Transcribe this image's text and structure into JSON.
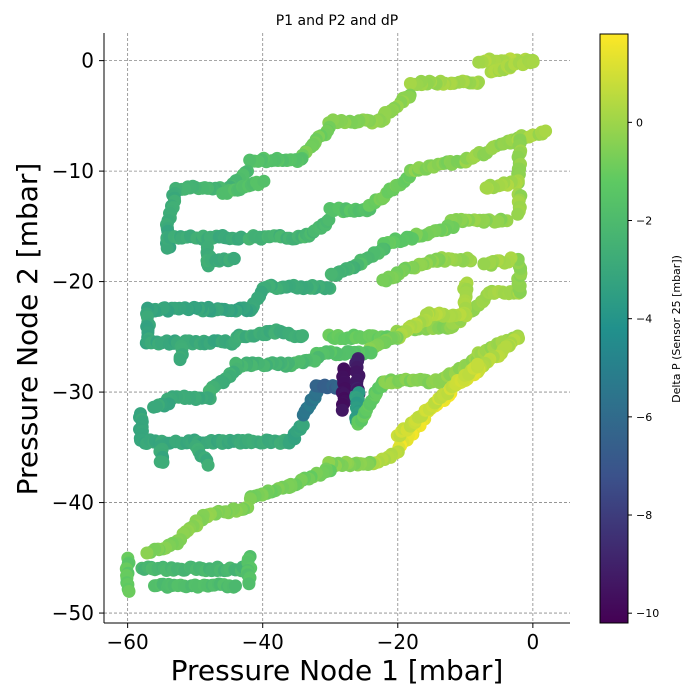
{
  "chart_data": {
    "type": "scatter",
    "title": "P1 and P2 and dP",
    "xlabel": "Pressure Node 1 [mbar]",
    "ylabel": "Pressure Node 2 [mbar]",
    "colorbar_label": "Delta P (Sensor 25 [mbar])",
    "xlim": [
      -63.5,
      5.5
    ],
    "ylim": [
      -50.9,
      2.5
    ],
    "clim": [
      -10.2,
      1.8
    ],
    "colormap": "viridis",
    "grid": true,
    "x_ticks": [
      -60,
      -40,
      -20,
      0
    ],
    "x_tick_labels": [
      "−60",
      "−40",
      "−20",
      "0"
    ],
    "y_ticks": [
      0,
      -10,
      -20,
      -30,
      -40,
      -50
    ],
    "y_tick_labels": [
      "0",
      "−10",
      "−20",
      "−30",
      "−40",
      "−50"
    ],
    "colorbar_ticks": [
      0,
      -2,
      -4,
      -6,
      -8,
      -10
    ],
    "colorbar_tick_labels": [
      "0",
      "−2",
      "−4",
      "−6",
      "−8",
      "−10"
    ],
    "segments": [
      {
        "from": [
          0,
          0
        ],
        "to": [
          -8,
          0
        ],
        "dp": 0.3
      },
      {
        "from": [
          -8,
          -2
        ],
        "to": [
          -18,
          -2
        ],
        "dp": 0
      },
      {
        "from": [
          -18,
          -3
        ],
        "to": [
          -22,
          -5
        ],
        "dp": -0.3
      },
      {
        "from": [
          -22,
          -5.5
        ],
        "to": [
          -30,
          -5.5
        ],
        "dp": -0.4
      },
      {
        "from": [
          -30,
          -6
        ],
        "to": [
          -34,
          -8.5
        ],
        "dp": -0.8
      },
      {
        "from": [
          -34,
          -9
        ],
        "to": [
          -42,
          -9
        ],
        "dp": -1.6
      },
      {
        "from": [
          -42,
          -10
        ],
        "to": [
          -45,
          -11.5
        ],
        "dp": -2.0
      },
      {
        "from": [
          -45,
          -11.5
        ],
        "to": [
          -53,
          -11.5
        ],
        "dp": -2.3
      },
      {
        "from": [
          -53,
          -12
        ],
        "to": [
          -54,
          -15
        ],
        "dp": -2.8
      },
      {
        "from": [
          -54,
          -15
        ],
        "to": [
          -54,
          -17
        ],
        "dp": -3.0
      },
      {
        "from": [
          -54,
          -16
        ],
        "to": [
          -43,
          -16
        ],
        "dp": -2.8
      },
      {
        "from": [
          -42,
          -16
        ],
        "to": [
          -34,
          -16
        ],
        "dp": -2.4
      },
      {
        "from": [
          -48,
          -17
        ],
        "to": [
          -48,
          -18.5
        ],
        "dp": -2.8
      },
      {
        "from": [
          -48,
          -18
        ],
        "to": [
          -44,
          -18
        ],
        "dp": -2.8
      },
      {
        "from": [
          -34,
          -16
        ],
        "to": [
          -30,
          -14.5
        ],
        "dp": -2.2
      },
      {
        "from": [
          -30,
          -13.5
        ],
        "to": [
          -24,
          -13.5
        ],
        "dp": -1.6
      },
      {
        "from": [
          -24,
          -13
        ],
        "to": [
          -18,
          -10.5
        ],
        "dp": -0.9
      },
      {
        "from": [
          -18,
          -10
        ],
        "to": [
          -10,
          -9
        ],
        "dp": -0.5
      },
      {
        "from": [
          -10,
          -9
        ],
        "to": [
          -2,
          -7
        ],
        "dp": -0.2
      },
      {
        "from": [
          -2,
          -7
        ],
        "to": [
          2,
          -6.5
        ],
        "dp": 0.1
      },
      {
        "from": [
          -2,
          -7
        ],
        "to": [
          -2,
          -11
        ],
        "dp": -0.2
      },
      {
        "from": [
          -2,
          -11
        ],
        "to": [
          -7,
          -11.5
        ],
        "dp": 0.1
      },
      {
        "from": [
          -2,
          -12
        ],
        "to": [
          -2,
          -14
        ],
        "dp": -0.1
      },
      {
        "from": [
          -4,
          -14.5
        ],
        "to": [
          -12,
          -14.5
        ],
        "dp": -0.3
      },
      {
        "from": [
          -12,
          -15
        ],
        "to": [
          -18,
          -16
        ],
        "dp": -0.8
      },
      {
        "from": [
          -18,
          -16
        ],
        "to": [
          -22,
          -16.5
        ],
        "dp": -1.2
      },
      {
        "from": [
          -22,
          -17
        ],
        "to": [
          -26,
          -18.5
        ],
        "dp": -1.9
      },
      {
        "from": [
          -26,
          -18.5
        ],
        "to": [
          -30,
          -19.5
        ],
        "dp": -2.4
      },
      {
        "from": [
          -30,
          -20.5
        ],
        "to": [
          -40,
          -20.5
        ],
        "dp": -2.8
      },
      {
        "from": [
          -40,
          -21
        ],
        "to": [
          -42,
          -22.5
        ],
        "dp": -3.0
      },
      {
        "from": [
          -42,
          -22.5
        ],
        "to": [
          -57,
          -22.5
        ],
        "dp": -3.2
      },
      {
        "from": [
          -57,
          -23
        ],
        "to": [
          -57,
          -25.5
        ],
        "dp": -3.1
      },
      {
        "from": [
          -57,
          -25.5
        ],
        "to": [
          -44,
          -25.5
        ],
        "dp": -3.0
      },
      {
        "from": [
          -44,
          -25
        ],
        "to": [
          -38,
          -24.5
        ],
        "dp": -2.8
      },
      {
        "from": [
          -52,
          -26
        ],
        "to": [
          -52,
          -27
        ],
        "dp": -2.9
      },
      {
        "from": [
          -38,
          -24.5
        ],
        "to": [
          -34,
          -25
        ],
        "dp": -2.7
      },
      {
        "from": [
          -30,
          -25
        ],
        "to": [
          -20,
          -25
        ],
        "dp": -1.1
      },
      {
        "from": [
          -20,
          -24.5
        ],
        "to": [
          -12,
          -24
        ],
        "dp": -0.4
      },
      {
        "from": [
          -12,
          -24
        ],
        "to": [
          -6,
          -21
        ],
        "dp": -0.1
      },
      {
        "from": [
          -6,
          -21
        ],
        "to": [
          -2,
          -21
        ],
        "dp": 0
      },
      {
        "from": [
          -2,
          -21
        ],
        "to": [
          -2,
          -18
        ],
        "dp": -0.2
      },
      {
        "from": [
          -3,
          -18
        ],
        "to": [
          -7,
          -18.5
        ],
        "dp": 0
      },
      {
        "from": [
          -9,
          -18
        ],
        "to": [
          -14,
          -18
        ],
        "dp": -0.1
      },
      {
        "from": [
          -14,
          -18
        ],
        "to": [
          -19,
          -19
        ],
        "dp": -0.4
      },
      {
        "from": [
          -19,
          -19
        ],
        "to": [
          -22,
          -20
        ],
        "dp": -0.8
      },
      {
        "from": [
          -10,
          -20
        ],
        "to": [
          -10,
          -23
        ],
        "dp": 0.2
      },
      {
        "from": [
          -10,
          -23
        ],
        "to": [
          -16,
          -23
        ],
        "dp": 0.3
      },
      {
        "from": [
          -16,
          -23.5
        ],
        "to": [
          -20,
          -25
        ],
        "dp": 0.3
      },
      {
        "from": [
          -20,
          -25
        ],
        "to": [
          -24,
          -26
        ],
        "dp": -0.6
      },
      {
        "from": [
          -24,
          -26.5
        ],
        "to": [
          -32,
          -26.5
        ],
        "dp": -1.6
      },
      {
        "from": [
          -32,
          -27
        ],
        "to": [
          -36,
          -27.5
        ],
        "dp": -2.0
      },
      {
        "from": [
          -36,
          -27.5
        ],
        "to": [
          -44,
          -27.5
        ],
        "dp": -2.4
      },
      {
        "from": [
          -44,
          -28
        ],
        "to": [
          -48,
          -30
        ],
        "dp": -2.6
      },
      {
        "from": [
          -48,
          -30.5
        ],
        "to": [
          -54,
          -30.5
        ],
        "dp": -2.9
      },
      {
        "from": [
          -54,
          -31
        ],
        "to": [
          -56,
          -31.5
        ],
        "dp": -3.0
      },
      {
        "from": [
          -58,
          -32
        ],
        "to": [
          -58,
          -34.5
        ],
        "dp": -3.1
      },
      {
        "from": [
          -58,
          -34.5
        ],
        "to": [
          -46,
          -34.5
        ],
        "dp": -3.0
      },
      {
        "from": [
          -46,
          -34.5
        ],
        "to": [
          -36,
          -34.5
        ],
        "dp": -2.9
      },
      {
        "from": [
          -55,
          -35
        ],
        "to": [
          -55,
          -36.5
        ],
        "dp": -3.0
      },
      {
        "from": [
          -50,
          -35
        ],
        "to": [
          -48,
          -36.5
        ],
        "dp": -2.8
      },
      {
        "from": [
          -36,
          -34.5
        ],
        "to": [
          -34,
          -33
        ],
        "dp": -3.2
      },
      {
        "from": [
          -34,
          -32
        ],
        "to": [
          -32,
          -30
        ],
        "dp": -5.5
      },
      {
        "from": [
          -32,
          -29.5
        ],
        "to": [
          -28,
          -29.5
        ],
        "dp": -6.4
      },
      {
        "from": [
          -28,
          -28
        ],
        "to": [
          -28,
          -31.5
        ],
        "dp": -9.6
      },
      {
        "from": [
          -26,
          -27
        ],
        "to": [
          -26,
          -31.5
        ],
        "dp": -9.2
      },
      {
        "from": [
          -26,
          -30
        ],
        "to": [
          -26,
          -33
        ],
        "dp": -3.5
      },
      {
        "from": [
          -26,
          -33
        ],
        "to": [
          -22,
          -29
        ],
        "dp": -1.2
      },
      {
        "from": [
          -22,
          -29
        ],
        "to": [
          -14,
          -29
        ],
        "dp": -0.5
      },
      {
        "from": [
          -14,
          -29
        ],
        "to": [
          -8,
          -27
        ],
        "dp": -0.2
      },
      {
        "from": [
          -8,
          -26.5
        ],
        "to": [
          -2,
          -25
        ],
        "dp": 0
      },
      {
        "from": [
          -2,
          -25
        ],
        "to": [
          -8,
          -28
        ],
        "dp": 0.4
      },
      {
        "from": [
          -8,
          -28
        ],
        "to": [
          -12,
          -29.5
        ],
        "dp": 1.0
      },
      {
        "from": [
          -12,
          -30
        ],
        "to": [
          -16,
          -32
        ],
        "dp": 1.5
      },
      {
        "from": [
          -16,
          -32.5
        ],
        "to": [
          -20,
          -35
        ],
        "dp": 1.4
      },
      {
        "from": [
          -20,
          -35.5
        ],
        "to": [
          -24,
          -36.5
        ],
        "dp": 0.4
      },
      {
        "from": [
          -24,
          -36.5
        ],
        "to": [
          -30,
          -36.5
        ],
        "dp": -0.5
      },
      {
        "from": [
          -30,
          -37
        ],
        "to": [
          -36,
          -38.5
        ],
        "dp": -0.9
      },
      {
        "from": [
          -36,
          -38.5
        ],
        "to": [
          -42,
          -39.5
        ],
        "dp": -0.8
      },
      {
        "from": [
          -42,
          -40.5
        ],
        "to": [
          -48,
          -41
        ],
        "dp": -0.6
      },
      {
        "from": [
          -48,
          -41
        ],
        "to": [
          -52,
          -43
        ],
        "dp": -0.4
      },
      {
        "from": [
          -52,
          -43.5
        ],
        "to": [
          -57,
          -44.5
        ],
        "dp": -0.6
      },
      {
        "from": [
          -60,
          -45
        ],
        "to": [
          -60,
          -48
        ],
        "dp": -1.2
      },
      {
        "from": [
          -58,
          -46
        ],
        "to": [
          -42,
          -46
        ],
        "dp": -2.2
      },
      {
        "from": [
          -56,
          -47.5
        ],
        "to": [
          -44,
          -47.5
        ],
        "dp": -1.9
      },
      {
        "from": [
          -42,
          -45
        ],
        "to": [
          -42,
          -47.5
        ],
        "dp": -1.6
      },
      {
        "from": [
          -20,
          -34
        ],
        "to": [
          -8,
          -27.5
        ],
        "dp": 0.8
      },
      {
        "from": [
          -46,
          -12
        ],
        "to": [
          -40,
          -11
        ],
        "dp": -1.8
      },
      {
        "from": [
          -6,
          -1
        ],
        "to": [
          0,
          0
        ],
        "dp": 0.2
      }
    ]
  }
}
